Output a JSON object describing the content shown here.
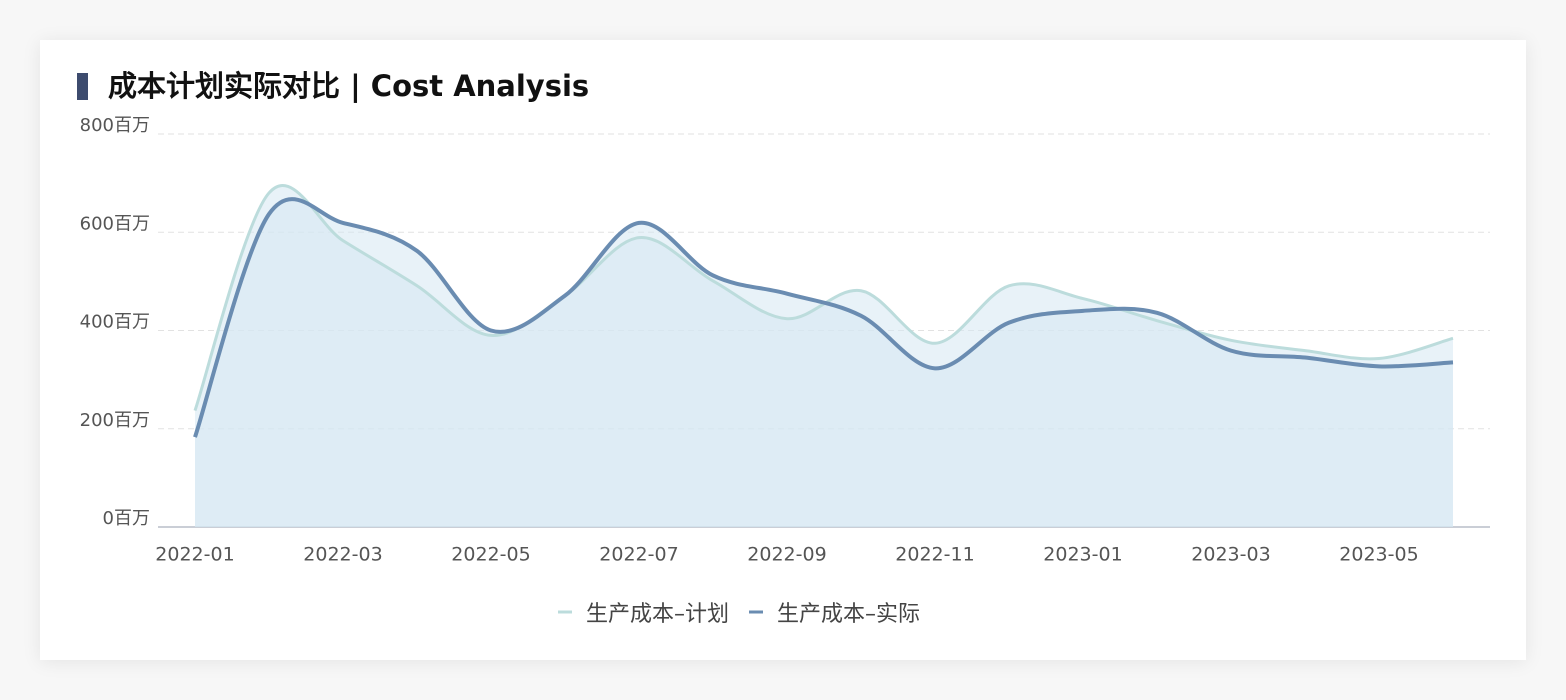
{
  "chart_data": {
    "type": "area-line",
    "title": "成本计划实际对比 | Cost Analysis",
    "categories": [
      "2022-01",
      null,
      "2022-03",
      null,
      "2022-05",
      null,
      "2022-07",
      null,
      "2022-09",
      null,
      "2022-11",
      null,
      "2023-01",
      null,
      "2023-03",
      null,
      "2023-05",
      null
    ],
    "series": [
      {
        "name": "生产成本–计划",
        "color": "#bcdcdc",
        "values": [
          237,
          680,
          583,
          491,
          390,
          471,
          589,
          501,
          424,
          481,
          374,
          491,
          465,
          420,
          380,
          359,
          343,
          384
        ]
      },
      {
        "name": "生产成本–实际",
        "color": "#6a8cb1",
        "values": [
          183,
          637,
          619,
          562,
          400,
          471,
          619,
          512,
          475,
          430,
          323,
          416,
          440,
          436,
          359,
          345,
          327,
          335
        ]
      }
    ],
    "ylim": [
      0,
      800
    ],
    "yticks": [
      {
        "value": 0,
        "label": "0百万"
      },
      {
        "value": 200,
        "label": "200百万"
      },
      {
        "value": 400,
        "label": "400百万"
      },
      {
        "value": 600,
        "label": "600百万"
      },
      {
        "value": 800,
        "label": "800百万"
      }
    ],
    "grid": true,
    "legend": "bottom"
  }
}
